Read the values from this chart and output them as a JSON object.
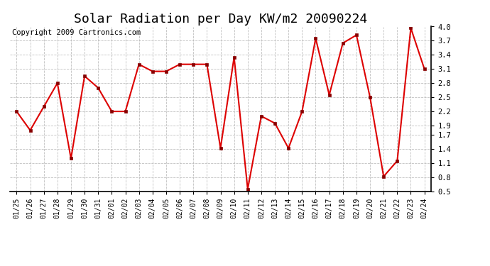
{
  "title": "Solar Radiation per Day KW/m2 20090224",
  "copyright": "Copyright 2009 Cartronics.com",
  "labels": [
    "01/25",
    "01/26",
    "01/27",
    "01/28",
    "01/29",
    "01/30",
    "01/31",
    "02/01",
    "02/02",
    "02/03",
    "02/04",
    "02/05",
    "02/06",
    "02/07",
    "02/08",
    "02/09",
    "02/10",
    "02/11",
    "02/12",
    "02/13",
    "02/14",
    "02/15",
    "02/16",
    "02/17",
    "02/18",
    "02/19",
    "02/20",
    "02/21",
    "02/22",
    "02/23",
    "02/24"
  ],
  "values": [
    2.2,
    1.8,
    2.3,
    2.8,
    1.2,
    2.95,
    2.7,
    2.2,
    2.2,
    3.2,
    3.05,
    3.05,
    3.2,
    3.2,
    3.2,
    1.42,
    3.35,
    0.55,
    2.1,
    1.95,
    1.42,
    2.2,
    3.75,
    2.55,
    3.65,
    3.82,
    2.5,
    0.82,
    1.15,
    3.97,
    3.1
  ],
  "line_color": "#dd0000",
  "marker_color": "#880000",
  "bg_color": "#ffffff",
  "grid_color": "#b0b0b0",
  "ylim": [
    0.5,
    4.0
  ],
  "yticks": [
    0.5,
    0.8,
    1.1,
    1.4,
    1.7,
    1.9,
    2.2,
    2.5,
    2.8,
    3.1,
    3.4,
    3.7,
    4.0
  ],
  "title_fontsize": 13,
  "copyright_fontsize": 7.5,
  "tick_fontsize": 7,
  "ytick_fontsize": 7.5
}
